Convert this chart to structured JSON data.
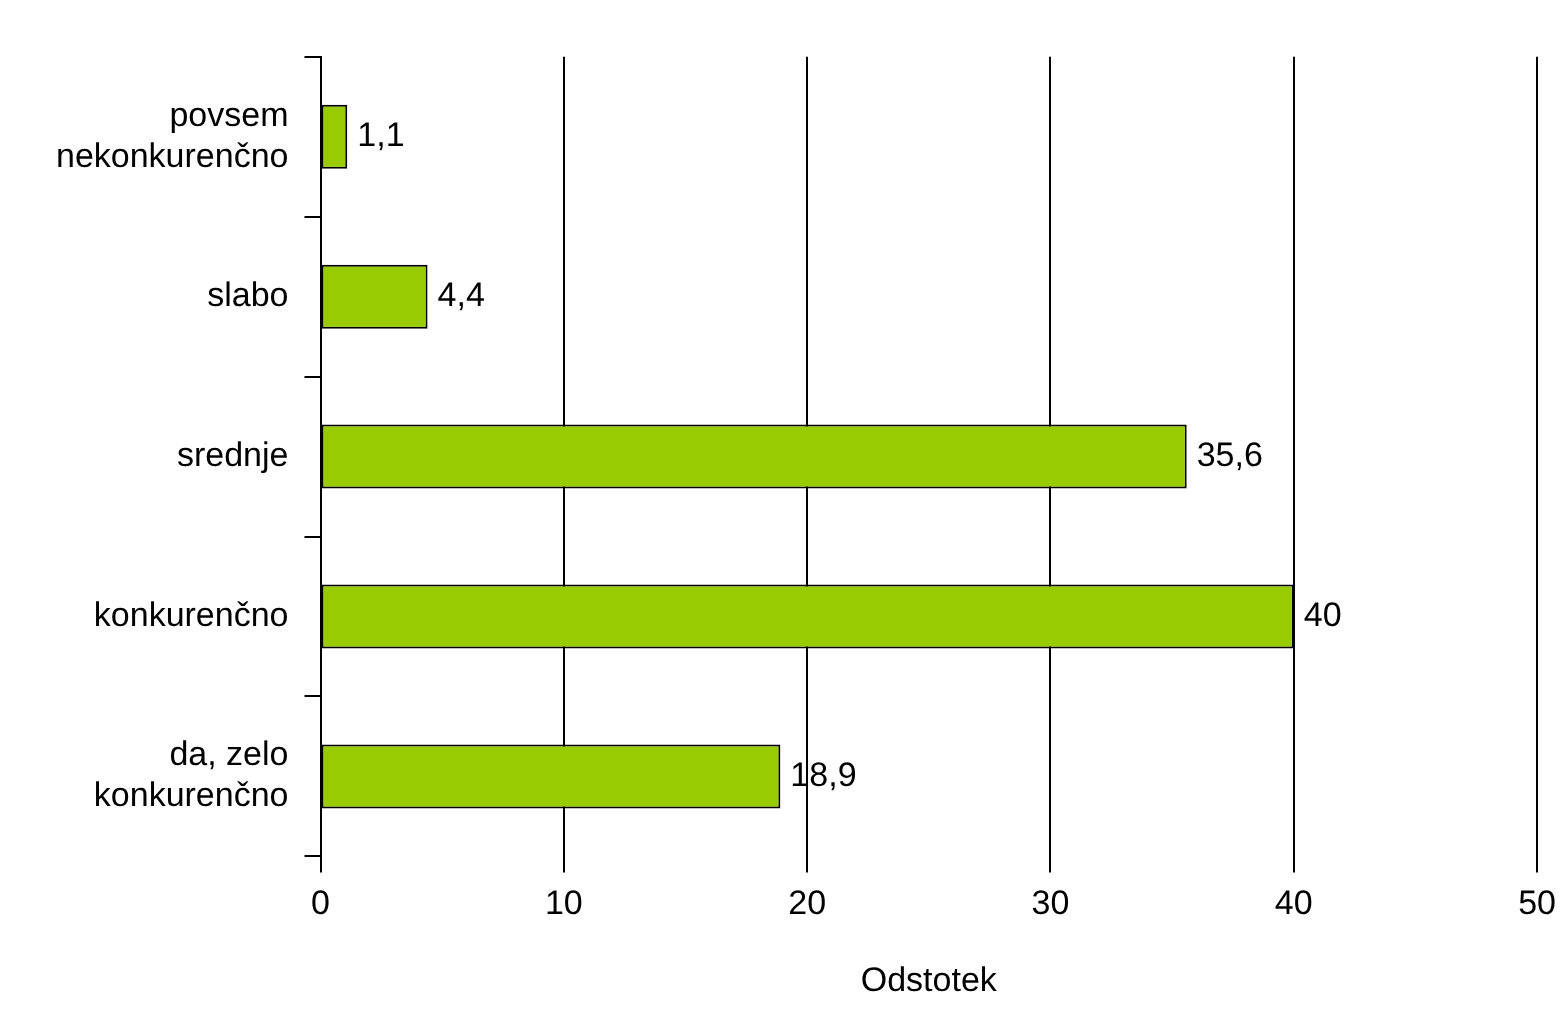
{
  "chart_data": {
    "type": "bar",
    "orientation": "horizontal",
    "categories": [
      "povsem\nnekonkurenčno",
      "slabo",
      "srednje",
      "konkurenčno",
      "da, zelo\nkonkurenčno"
    ],
    "values": [
      1.1,
      4.4,
      35.6,
      40,
      18.9
    ],
    "value_labels": [
      "1,1",
      "4,4",
      "35,6",
      "40",
      "18,9"
    ],
    "color": "#99cc00",
    "xlabel": "Odstotek",
    "xlim": [
      0,
      50
    ],
    "xticks": [
      0,
      10,
      20,
      30,
      40,
      50
    ],
    "grid": "x",
    "legend": false
  }
}
